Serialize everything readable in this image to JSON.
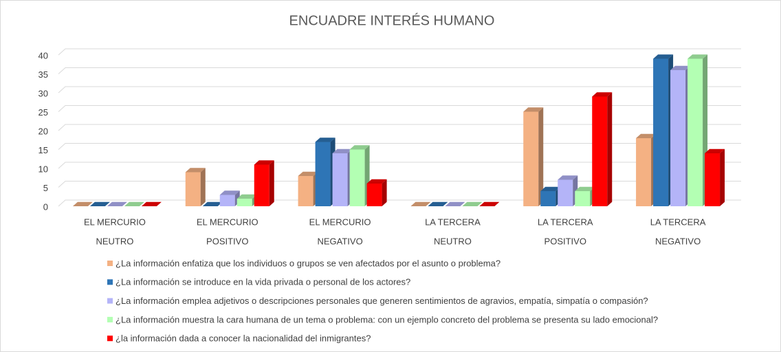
{
  "chart_data": {
    "type": "bar3d",
    "title": "ENCUADRE INTERÉS HUMANO",
    "categories": [
      [
        "EL MERCURIO",
        "NEUTRO"
      ],
      [
        "EL MERCURIO",
        "POSITIVO"
      ],
      [
        "EL MERCURIO",
        "NEGATIVO"
      ],
      [
        "LA TERCERA",
        "NEUTRO"
      ],
      [
        "LA TERCERA",
        "POSITIVO"
      ],
      [
        "LA TERCERA",
        "NEGATIVO"
      ]
    ],
    "series": [
      {
        "name": "¿La información enfatiza que los individuos o grupos se ven afectados por el asunto o problema?",
        "color": "#f4b183",
        "values": [
          0,
          9,
          8,
          0,
          25,
          18
        ]
      },
      {
        "name": "¿La información se introduce en la vida privada o personal de los actores?",
        "color": "#2e75b6",
        "values": [
          0,
          0,
          17,
          0,
          4,
          39
        ]
      },
      {
        "name": "¿La información emplea adjetivos o descripciones personales que generen sentimientos de agravios, empatía, simpatía o compasión?",
        "color": "#b4b4f8",
        "values": [
          0,
          3,
          14,
          0,
          7,
          36
        ]
      },
      {
        "name": "¿La información muestra la cara humana de un tema o problema: con un ejemplo concreto del problema se presenta su lado emocional?",
        "color": "#b3ffb3",
        "values": [
          0,
          2,
          15,
          0,
          4,
          39
        ]
      },
      {
        "name": "¿la información dada a conocer la nacionalidad del inmigrantes?",
        "color": "#ff0000",
        "values": [
          0,
          11,
          6,
          0,
          29,
          14
        ]
      }
    ],
    "ylim": [
      0,
      40
    ],
    "yticks": [
      0,
      5,
      10,
      15,
      20,
      25,
      30,
      35,
      40
    ],
    "grid": true,
    "legend": "bottom"
  }
}
